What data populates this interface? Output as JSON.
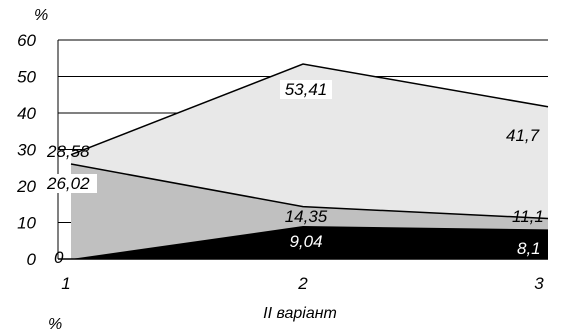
{
  "chart_data": {
    "type": "area",
    "title": "",
    "ylabel": "%",
    "bottom_unit_label": "%",
    "xlabel": "II варіант",
    "categories": [
      "1",
      "2",
      "3"
    ],
    "ylim": [
      0,
      60
    ],
    "yticks": [
      0,
      10,
      20,
      30,
      40,
      50,
      60
    ],
    "grid": true,
    "series": [
      {
        "values": [
          28.58,
          53.41,
          41.7
        ],
        "labels": [
          "28,58",
          "53,41",
          "41,7"
        ],
        "color": "#e8e8e8"
      },
      {
        "values": [
          26.02,
          14.35,
          11.1
        ],
        "labels": [
          "26,02",
          "14,35",
          "11,1"
        ],
        "color": "#c0c0c0"
      },
      {
        "values": [
          0,
          9.04,
          8.1
        ],
        "labels": [
          "0",
          "9,04",
          "8,1"
        ],
        "color": "#000000"
      }
    ]
  }
}
